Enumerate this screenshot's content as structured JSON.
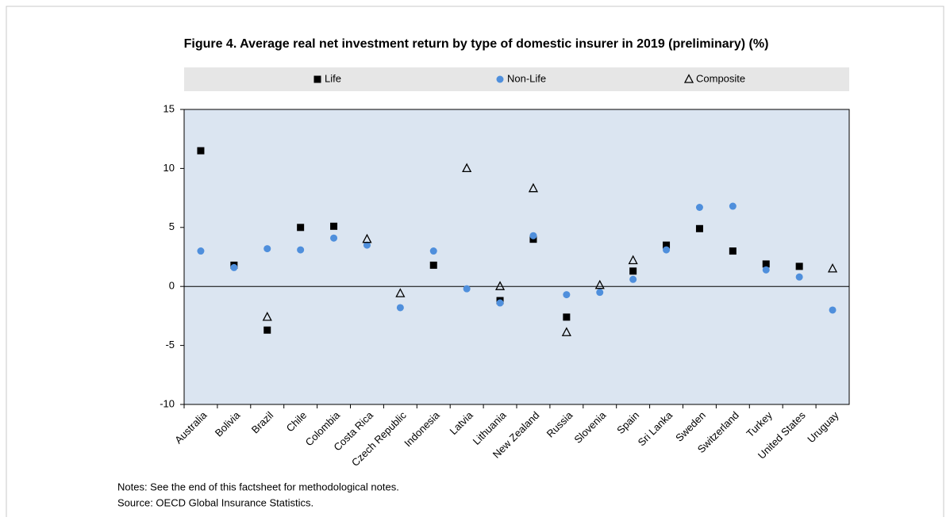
{
  "chart_data": {
    "type": "scatter",
    "title": "Figure 4. Average real net investment return by type of domestic insurer in 2019 (preliminary) (%)",
    "categories": [
      "Australia",
      "Bolivia",
      "Brazil",
      "Chile",
      "Colombia",
      "Costa Rica",
      "Czech Republic",
      "Indonesia",
      "Latvia",
      "Lithuania",
      "New Zealand",
      "Russia",
      "Slovenia",
      "Spain",
      "Sri Lanka",
      "Sweden",
      "Switzerland",
      "Turkey",
      "United States",
      "Uruguay"
    ],
    "series": [
      {
        "name": "Life",
        "color": "#000000",
        "marker": "square",
        "values": [
          11.5,
          1.8,
          -3.7,
          5.0,
          5.1,
          null,
          null,
          1.8,
          null,
          -1.2,
          4.0,
          -2.6,
          null,
          1.3,
          3.5,
          4.9,
          3.0,
          1.9,
          1.7,
          null
        ]
      },
      {
        "name": "Non-Life",
        "color": "#4f8fdc",
        "marker": "circle",
        "values": [
          3.0,
          1.6,
          3.2,
          3.1,
          4.1,
          3.5,
          -1.8,
          3.0,
          -0.2,
          -1.4,
          4.3,
          -0.7,
          -0.5,
          0.6,
          3.1,
          6.7,
          6.8,
          1.4,
          0.8,
          -2.0
        ]
      },
      {
        "name": "Composite",
        "color": "#000000",
        "marker": "triangle",
        "values": [
          null,
          null,
          -2.6,
          null,
          null,
          4.0,
          -0.6,
          null,
          10.0,
          0.0,
          8.3,
          -3.9,
          0.1,
          2.2,
          null,
          null,
          null,
          null,
          null,
          1.5
        ]
      }
    ],
    "ylim": [
      -10,
      15
    ],
    "yticks": [
      -10,
      -5,
      0,
      5,
      10,
      15
    ],
    "grid": false,
    "legend": "top",
    "notes": [
      "Notes: See the end of this factsheet for methodological notes.",
      "Source: OECD Global Insurance Statistics."
    ]
  }
}
